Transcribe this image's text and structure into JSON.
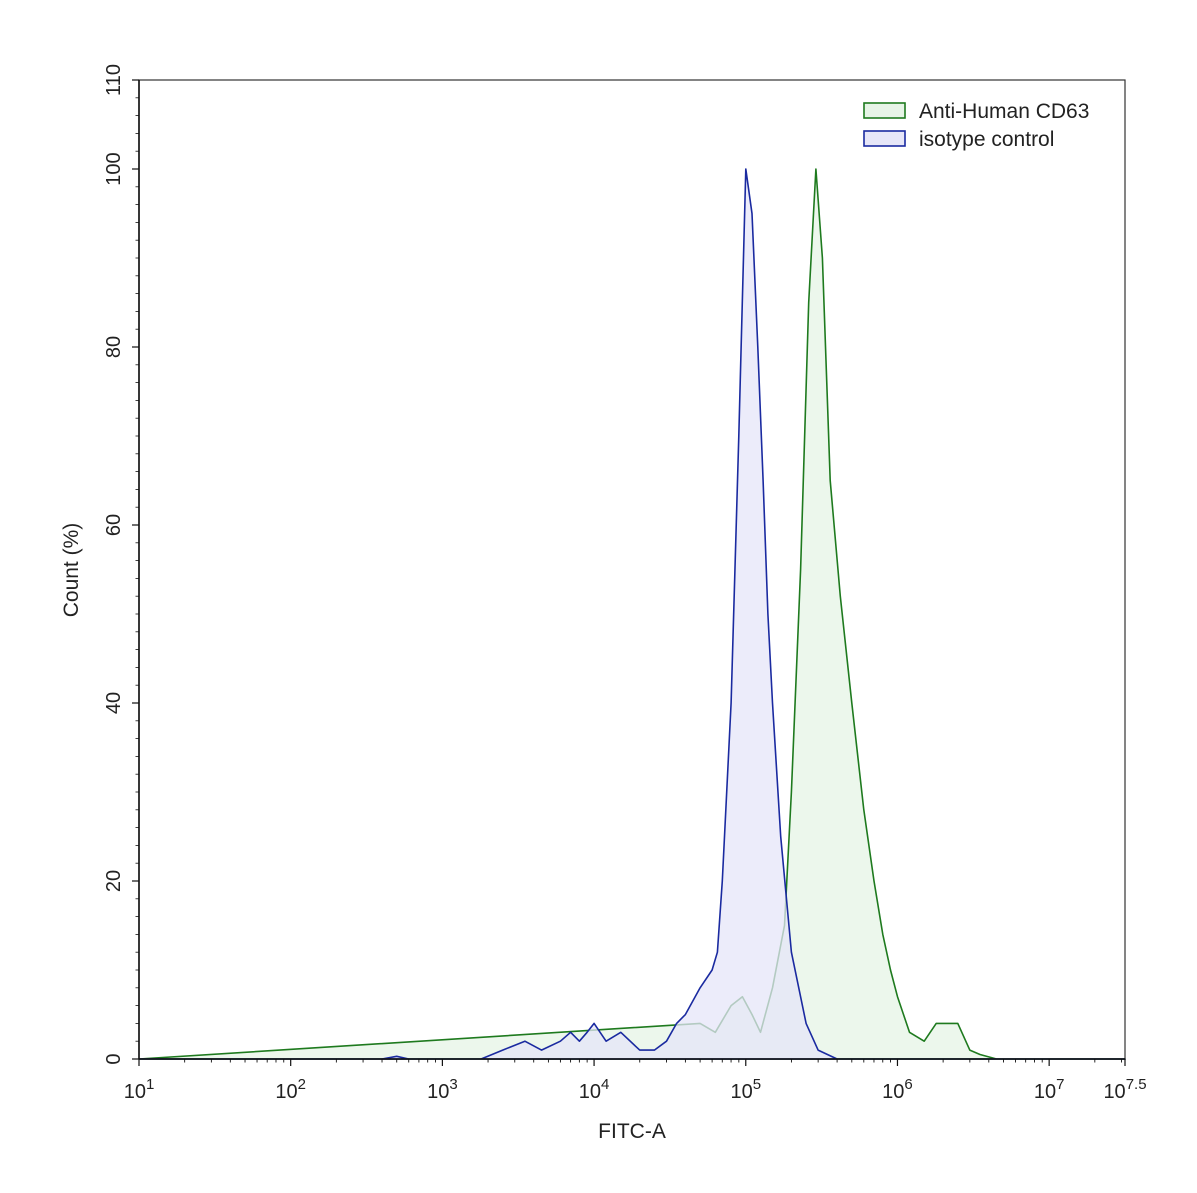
{
  "chart_data": {
    "type": "area",
    "title": "",
    "xlabel": "FITC-A",
    "ylabel": "Count  (%)",
    "x_scale": "log10",
    "xlim": [
      10,
      31622776.6
    ],
    "ylim": [
      0,
      110
    ],
    "x_ticks": [
      {
        "base": "10",
        "exp": "1",
        "value": 10
      },
      {
        "base": "10",
        "exp": "2",
        "value": 100
      },
      {
        "base": "10",
        "exp": "3",
        "value": 1000
      },
      {
        "base": "10",
        "exp": "4",
        "value": 10000
      },
      {
        "base": "10",
        "exp": "5",
        "value": 100000
      },
      {
        "base": "10",
        "exp": "6",
        "value": 1000000
      },
      {
        "base": "10",
        "exp": "7",
        "value": 10000000
      },
      {
        "base": "10",
        "exp": "7.5",
        "value": 31622776.6
      }
    ],
    "y_ticks": [
      "0",
      "20",
      "40",
      "60",
      "80",
      "100",
      "110"
    ],
    "legend_position": "top-right",
    "series": [
      {
        "name": "Anti-Human CD63",
        "stroke": "#1e7a1e",
        "fill": "#e6f4e6",
        "x": [
          10,
          50000,
          63000,
          80000,
          95000,
          110000,
          125000,
          150000,
          180000,
          200000,
          230000,
          260000,
          290000,
          320000,
          360000,
          420000,
          500000,
          600000,
          700000,
          800000,
          900000,
          1000000,
          1200000,
          1500000,
          1800000,
          2100000,
          2500000,
          3000000,
          3500000,
          4500000,
          31622776.6
        ],
        "y": [
          0,
          4,
          3,
          6,
          7,
          5,
          3,
          8,
          15,
          30,
          55,
          85,
          100,
          90,
          65,
          52,
          40,
          28,
          20,
          14,
          10,
          7,
          3,
          2,
          4,
          4,
          4,
          1,
          0.5,
          0,
          0
        ]
      },
      {
        "name": "isotype control",
        "stroke": "#1a2aa0",
        "fill": "#e6e6f8",
        "x": [
          10,
          400,
          500,
          600,
          1800,
          2500,
          3500,
          4500,
          6000,
          7000,
          8000,
          9000,
          10000,
          12000,
          15000,
          20000,
          25000,
          30000,
          35000,
          40000,
          50000,
          60000,
          65000,
          70000,
          80000,
          90000,
          100000,
          110000,
          120000,
          130000,
          140000,
          150000,
          170000,
          200000,
          250000,
          300000,
          400000,
          600000,
          31622776.6
        ],
        "y": [
          0,
          0,
          0.3,
          0,
          0,
          1,
          2,
          1,
          2,
          3,
          2,
          3,
          4,
          2,
          3,
          1,
          1,
          2,
          4,
          5,
          8,
          10,
          12,
          20,
          40,
          70,
          100,
          95,
          80,
          65,
          50,
          40,
          25,
          12,
          4,
          1,
          0,
          0,
          0
        ]
      }
    ]
  }
}
